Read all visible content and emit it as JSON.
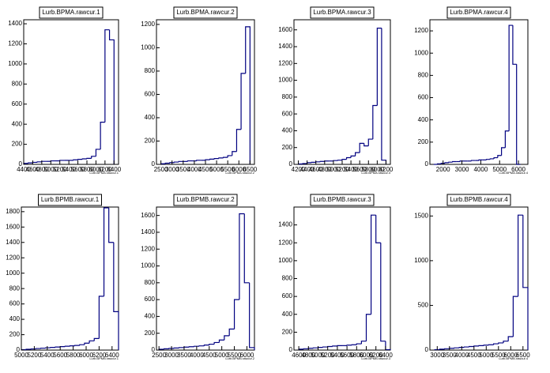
{
  "chart_data": [
    {
      "type": "histogram",
      "title": "Lurb.BPMA.rawcur.1",
      "xlabel": "Lurb.BPMA.rawcur.1",
      "color": "#000080",
      "bins": [
        4400,
        4500,
        4600,
        4700,
        4800,
        4900,
        5000,
        5100,
        5200,
        5300,
        5400,
        5500,
        5600,
        5700,
        5800,
        5900,
        6000,
        6100,
        6200,
        6300,
        6400
      ],
      "values": [
        10,
        15,
        20,
        25,
        30,
        30,
        35,
        35,
        40,
        40,
        40,
        45,
        50,
        55,
        60,
        80,
        150,
        420,
        1340,
        1240
      ],
      "xlim": [
        4400,
        6500
      ],
      "ylim": [
        0,
        1440
      ],
      "xticks": [
        4400,
        4600,
        4800,
        5000,
        5200,
        5400,
        5600,
        5800,
        6000,
        6200,
        6400
      ],
      "yticks": [
        0,
        200,
        400,
        600,
        800,
        1000,
        1200,
        1400
      ]
    },
    {
      "type": "histogram",
      "title": "Lurb.BPMA.rawcur.2",
      "xlabel": "Lurb.BPMA.rawcur.2",
      "color": "#000080",
      "bins": [
        2500,
        2700,
        2900,
        3100,
        3300,
        3500,
        3700,
        3900,
        4100,
        4300,
        4500,
        4700,
        4900,
        5100,
        5300,
        5500,
        5700,
        5900,
        6100,
        6300,
        6500
      ],
      "values": [
        5,
        10,
        15,
        20,
        25,
        25,
        30,
        30,
        35,
        35,
        40,
        45,
        50,
        55,
        60,
        75,
        110,
        300,
        780,
        1180
      ],
      "xlim": [
        2300,
        6700
      ],
      "ylim": [
        0,
        1240
      ],
      "xticks": [
        2500,
        3000,
        3500,
        4000,
        4500,
        5000,
        5500,
        6000,
        6500
      ],
      "yticks": [
        0,
        200,
        400,
        600,
        800,
        1000,
        1200
      ]
    },
    {
      "type": "histogram",
      "title": "Lurb.BPMA.rawcur.3",
      "xlabel": "Lurb.BPMA.rawcur.3",
      "color": "#000080",
      "bins": [
        4200,
        4300,
        4400,
        4500,
        4600,
        4700,
        4800,
        4900,
        5000,
        5100,
        5200,
        5300,
        5400,
        5500,
        5600,
        5700,
        5800,
        5900,
        6000,
        6100,
        6200
      ],
      "values": [
        5,
        10,
        20,
        25,
        30,
        35,
        40,
        40,
        45,
        50,
        60,
        80,
        100,
        140,
        250,
        220,
        300,
        700,
        1620,
        50
      ],
      "xlim": [
        4100,
        6300
      ],
      "ylim": [
        0,
        1720
      ],
      "xticks": [
        4200,
        4400,
        4600,
        4800,
        5000,
        5200,
        5400,
        5600,
        5800,
        6000,
        6200
      ],
      "yticks": [
        0,
        200,
        400,
        600,
        800,
        1000,
        1200,
        1400,
        1600
      ]
    },
    {
      "type": "histogram",
      "title": "Lurb.BPMA.rawcur.4",
      "xlabel": "Lurb.BPMA.rawcur.4",
      "color": "#000080",
      "bins": [
        1500,
        1700,
        1900,
        2100,
        2300,
        2500,
        2700,
        2900,
        3100,
        3300,
        3500,
        3700,
        3900,
        4100,
        4300,
        4500,
        4700,
        4900,
        5100,
        5300,
        5500,
        5700,
        5900,
        6100
      ],
      "values": [
        0,
        5,
        10,
        15,
        20,
        25,
        25,
        30,
        30,
        30,
        35,
        35,
        40,
        40,
        45,
        50,
        60,
        80,
        150,
        300,
        1250,
        900,
        0
      ],
      "xlim": [
        1300,
        6500
      ],
      "ylim": [
        0,
        1300
      ],
      "xticks": [
        2000,
        3000,
        4000,
        5000,
        6000
      ],
      "yticks": [
        0,
        200,
        400,
        600,
        800,
        1000,
        1200
      ]
    },
    {
      "type": "histogram",
      "title": "Lurb.BPMB.rawcur.1",
      "xlabel": "Lurb.BPMB.rawcur.1",
      "color": "#000080",
      "bins": [
        5000,
        5075,
        5150,
        5225,
        5300,
        5375,
        5450,
        5525,
        5600,
        5675,
        5750,
        5825,
        5900,
        5975,
        6050,
        6125,
        6200,
        6275,
        6350,
        6425,
        6500
      ],
      "values": [
        5,
        10,
        15,
        20,
        25,
        30,
        35,
        40,
        45,
        50,
        55,
        60,
        70,
        90,
        120,
        150,
        700,
        1850,
        1400,
        500
      ],
      "xlim": [
        5000,
        6500
      ],
      "ylim": [
        0,
        1860
      ],
      "xticks": [
        5000,
        5200,
        5400,
        5600,
        5800,
        6000,
        6200,
        6400
      ],
      "yticks": [
        0,
        200,
        400,
        600,
        800,
        1000,
        1200,
        1400,
        1600,
        1800
      ]
    },
    {
      "type": "histogram",
      "title": "Lurb.BPMB.rawcur.2",
      "xlabel": "Lurb.BPMB.rawcur.2",
      "color": "#000080",
      "bins": [
        2500,
        2700,
        2900,
        3100,
        3300,
        3500,
        3700,
        3900,
        4100,
        4300,
        4500,
        4700,
        4900,
        5100,
        5300,
        5500,
        5700,
        5900,
        6100,
        6300
      ],
      "values": [
        10,
        15,
        20,
        25,
        30,
        35,
        40,
        45,
        50,
        60,
        70,
        90,
        120,
        170,
        250,
        600,
        1620,
        800,
        30
      ],
      "xlim": [
        2400,
        6300
      ],
      "ylim": [
        0,
        1700
      ],
      "xticks": [
        2500,
        3000,
        3500,
        4000,
        4500,
        5000,
        5500,
        6000
      ],
      "yticks": [
        0,
        200,
        400,
        600,
        800,
        1000,
        1200,
        1400,
        1600
      ]
    },
    {
      "type": "histogram",
      "title": "Lurb.BPMB.rawcur.3",
      "xlabel": "Lurb.BPMB.rawcur.3",
      "color": "#000080",
      "bins": [
        4600,
        4700,
        4800,
        4900,
        5000,
        5100,
        5200,
        5300,
        5400,
        5500,
        5600,
        5700,
        5800,
        5900,
        6000,
        6100,
        6200,
        6300,
        6400,
        6500
      ],
      "values": [
        10,
        15,
        20,
        25,
        30,
        35,
        40,
        45,
        50,
        50,
        55,
        60,
        70,
        100,
        400,
        1510,
        1200,
        100,
        5
      ],
      "xlim": [
        4500,
        6500
      ],
      "ylim": [
        0,
        1600
      ],
      "xticks": [
        4600,
        4800,
        5000,
        5200,
        5400,
        5600,
        5800,
        6000,
        6200,
        6400
      ],
      "yticks": [
        0,
        200,
        400,
        600,
        800,
        1000,
        1200,
        1400
      ]
    },
    {
      "type": "histogram",
      "title": "Lurb.BPMB.rawcur.4",
      "xlabel": "Lurb.BPMB.rawcur.4",
      "color": "#000080",
      "bins": [
        2900,
        3100,
        3300,
        3500,
        3700,
        3900,
        4100,
        4300,
        4500,
        4700,
        4900,
        5100,
        5300,
        5500,
        5700,
        5900,
        6100,
        6300,
        6500,
        6700
      ],
      "values": [
        5,
        10,
        15,
        20,
        25,
        30,
        35,
        40,
        45,
        50,
        55,
        60,
        70,
        80,
        100,
        150,
        600,
        1510,
        700
      ],
      "xlim": [
        2700,
        6700
      ],
      "ylim": [
        0,
        1600
      ],
      "xticks": [
        3000,
        3500,
        4000,
        4500,
        5000,
        5500,
        6000,
        6500
      ],
      "yticks": [
        0,
        500,
        1000,
        1500
      ]
    }
  ]
}
